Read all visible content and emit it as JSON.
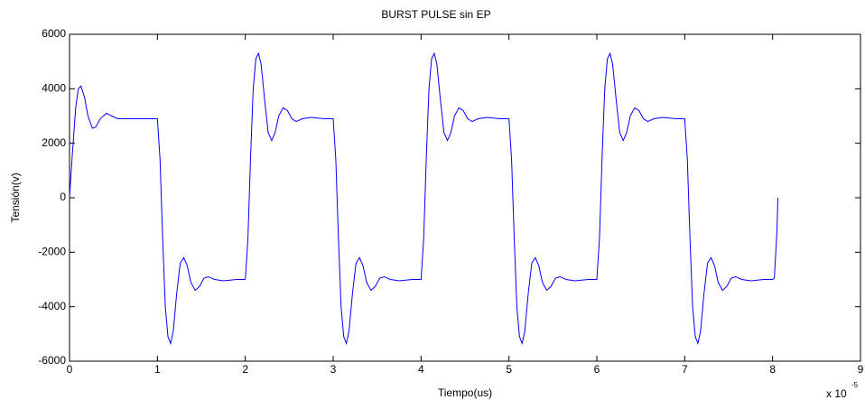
{
  "chart_data": {
    "type": "line",
    "title": "BURST PULSE sin EP",
    "xlabel": "Tiempo(us)",
    "ylabel": "Tensión(v)",
    "x_multiplier_label": "x 10",
    "x_multiplier_exponent": "-5",
    "xlim": [
      0,
      9
    ],
    "xticks": [
      0,
      1,
      2,
      3,
      4,
      5,
      6,
      7,
      8,
      9
    ],
    "ylim": [
      -6000,
      6000
    ],
    "yticks": [
      -6000,
      -4000,
      -2000,
      0,
      2000,
      4000,
      6000
    ],
    "grid": false,
    "x": [
      0,
      0.03,
      0.07,
      0.1,
      0.13,
      0.17,
      0.21,
      0.26,
      0.3,
      0.35,
      0.42,
      0.48,
      0.55,
      0.65,
      0.8,
      1,
      1.03,
      1.06,
      1.09,
      1.12,
      1.15,
      1.18,
      1.22,
      1.26,
      1.3,
      1.34,
      1.38,
      1.43,
      1.48,
      1.53,
      1.58,
      1.65,
      1.75,
      1.9,
      2,
      2.03,
      2.06,
      2.09,
      2.12,
      2.15,
      2.18,
      2.22,
      2.26,
      2.3,
      2.34,
      2.38,
      2.43,
      2.48,
      2.53,
      2.58,
      2.65,
      2.75,
      2.9,
      3,
      3.03,
      3.06,
      3.09,
      3.12,
      3.15,
      3.18,
      3.22,
      3.26,
      3.3,
      3.34,
      3.38,
      3.43,
      3.48,
      3.53,
      3.58,
      3.65,
      3.75,
      3.9,
      4,
      4.03,
      4.06,
      4.09,
      4.12,
      4.15,
      4.18,
      4.22,
      4.26,
      4.3,
      4.34,
      4.38,
      4.43,
      4.48,
      4.53,
      4.58,
      4.65,
      4.75,
      4.9,
      5,
      5.03,
      5.06,
      5.09,
      5.12,
      5.15,
      5.18,
      5.22,
      5.26,
      5.3,
      5.34,
      5.38,
      5.43,
      5.48,
      5.53,
      5.58,
      5.65,
      5.75,
      5.9,
      6,
      6.03,
      6.06,
      6.09,
      6.12,
      6.15,
      6.18,
      6.22,
      6.26,
      6.3,
      6.34,
      6.38,
      6.43,
      6.48,
      6.53,
      6.58,
      6.65,
      6.75,
      6.9,
      7,
      7.03,
      7.06,
      7.09,
      7.12,
      7.15,
      7.18,
      7.22,
      7.26,
      7.3,
      7.34,
      7.38,
      7.43,
      7.48,
      7.53,
      7.58,
      7.65,
      7.75,
      7.9,
      8,
      8.02,
      8.05,
      8.06
    ],
    "series": [
      {
        "name": "Tensión",
        "color": "#0000ff",
        "values": [
          0,
          1500,
          3300,
          4000,
          4100,
          3700,
          3000,
          2550,
          2600,
          2900,
          3100,
          3000,
          2900,
          2900,
          2900,
          2900,
          1400,
          -1500,
          -4000,
          -5100,
          -5350,
          -4900,
          -3500,
          -2400,
          -2200,
          -2500,
          -3100,
          -3400,
          -3250,
          -2950,
          -2900,
          -3000,
          -3050,
          -3000,
          -3000,
          -1500,
          1500,
          4000,
          5100,
          5300,
          4900,
          3600,
          2400,
          2100,
          2400,
          3000,
          3300,
          3200,
          2900,
          2800,
          2900,
          2950,
          2900,
          2900,
          1400,
          -1500,
          -4000,
          -5100,
          -5350,
          -4900,
          -3500,
          -2400,
          -2200,
          -2500,
          -3100,
          -3400,
          -3250,
          -2950,
          -2900,
          -3000,
          -3050,
          -3000,
          -3000,
          -1500,
          1500,
          4000,
          5100,
          5300,
          4900,
          3600,
          2400,
          2100,
          2400,
          3000,
          3300,
          3200,
          2900,
          2800,
          2900,
          2950,
          2900,
          2900,
          1400,
          -1500,
          -4000,
          -5100,
          -5350,
          -4900,
          -3500,
          -2400,
          -2200,
          -2500,
          -3100,
          -3400,
          -3250,
          -2950,
          -2900,
          -3000,
          -3050,
          -3000,
          -3000,
          -1500,
          1500,
          4000,
          5100,
          5300,
          4900,
          3600,
          2400,
          2100,
          2400,
          3000,
          3300,
          3200,
          2900,
          2800,
          2900,
          2950,
          2900,
          2900,
          1400,
          -1500,
          -4000,
          -5100,
          -5350,
          -4900,
          -3500,
          -2400,
          -2200,
          -2500,
          -3100,
          -3400,
          -3250,
          -2950,
          -2900,
          -3000,
          -3050,
          -3000,
          -3000,
          -2950,
          -1200,
          0
        ]
      }
    ]
  }
}
